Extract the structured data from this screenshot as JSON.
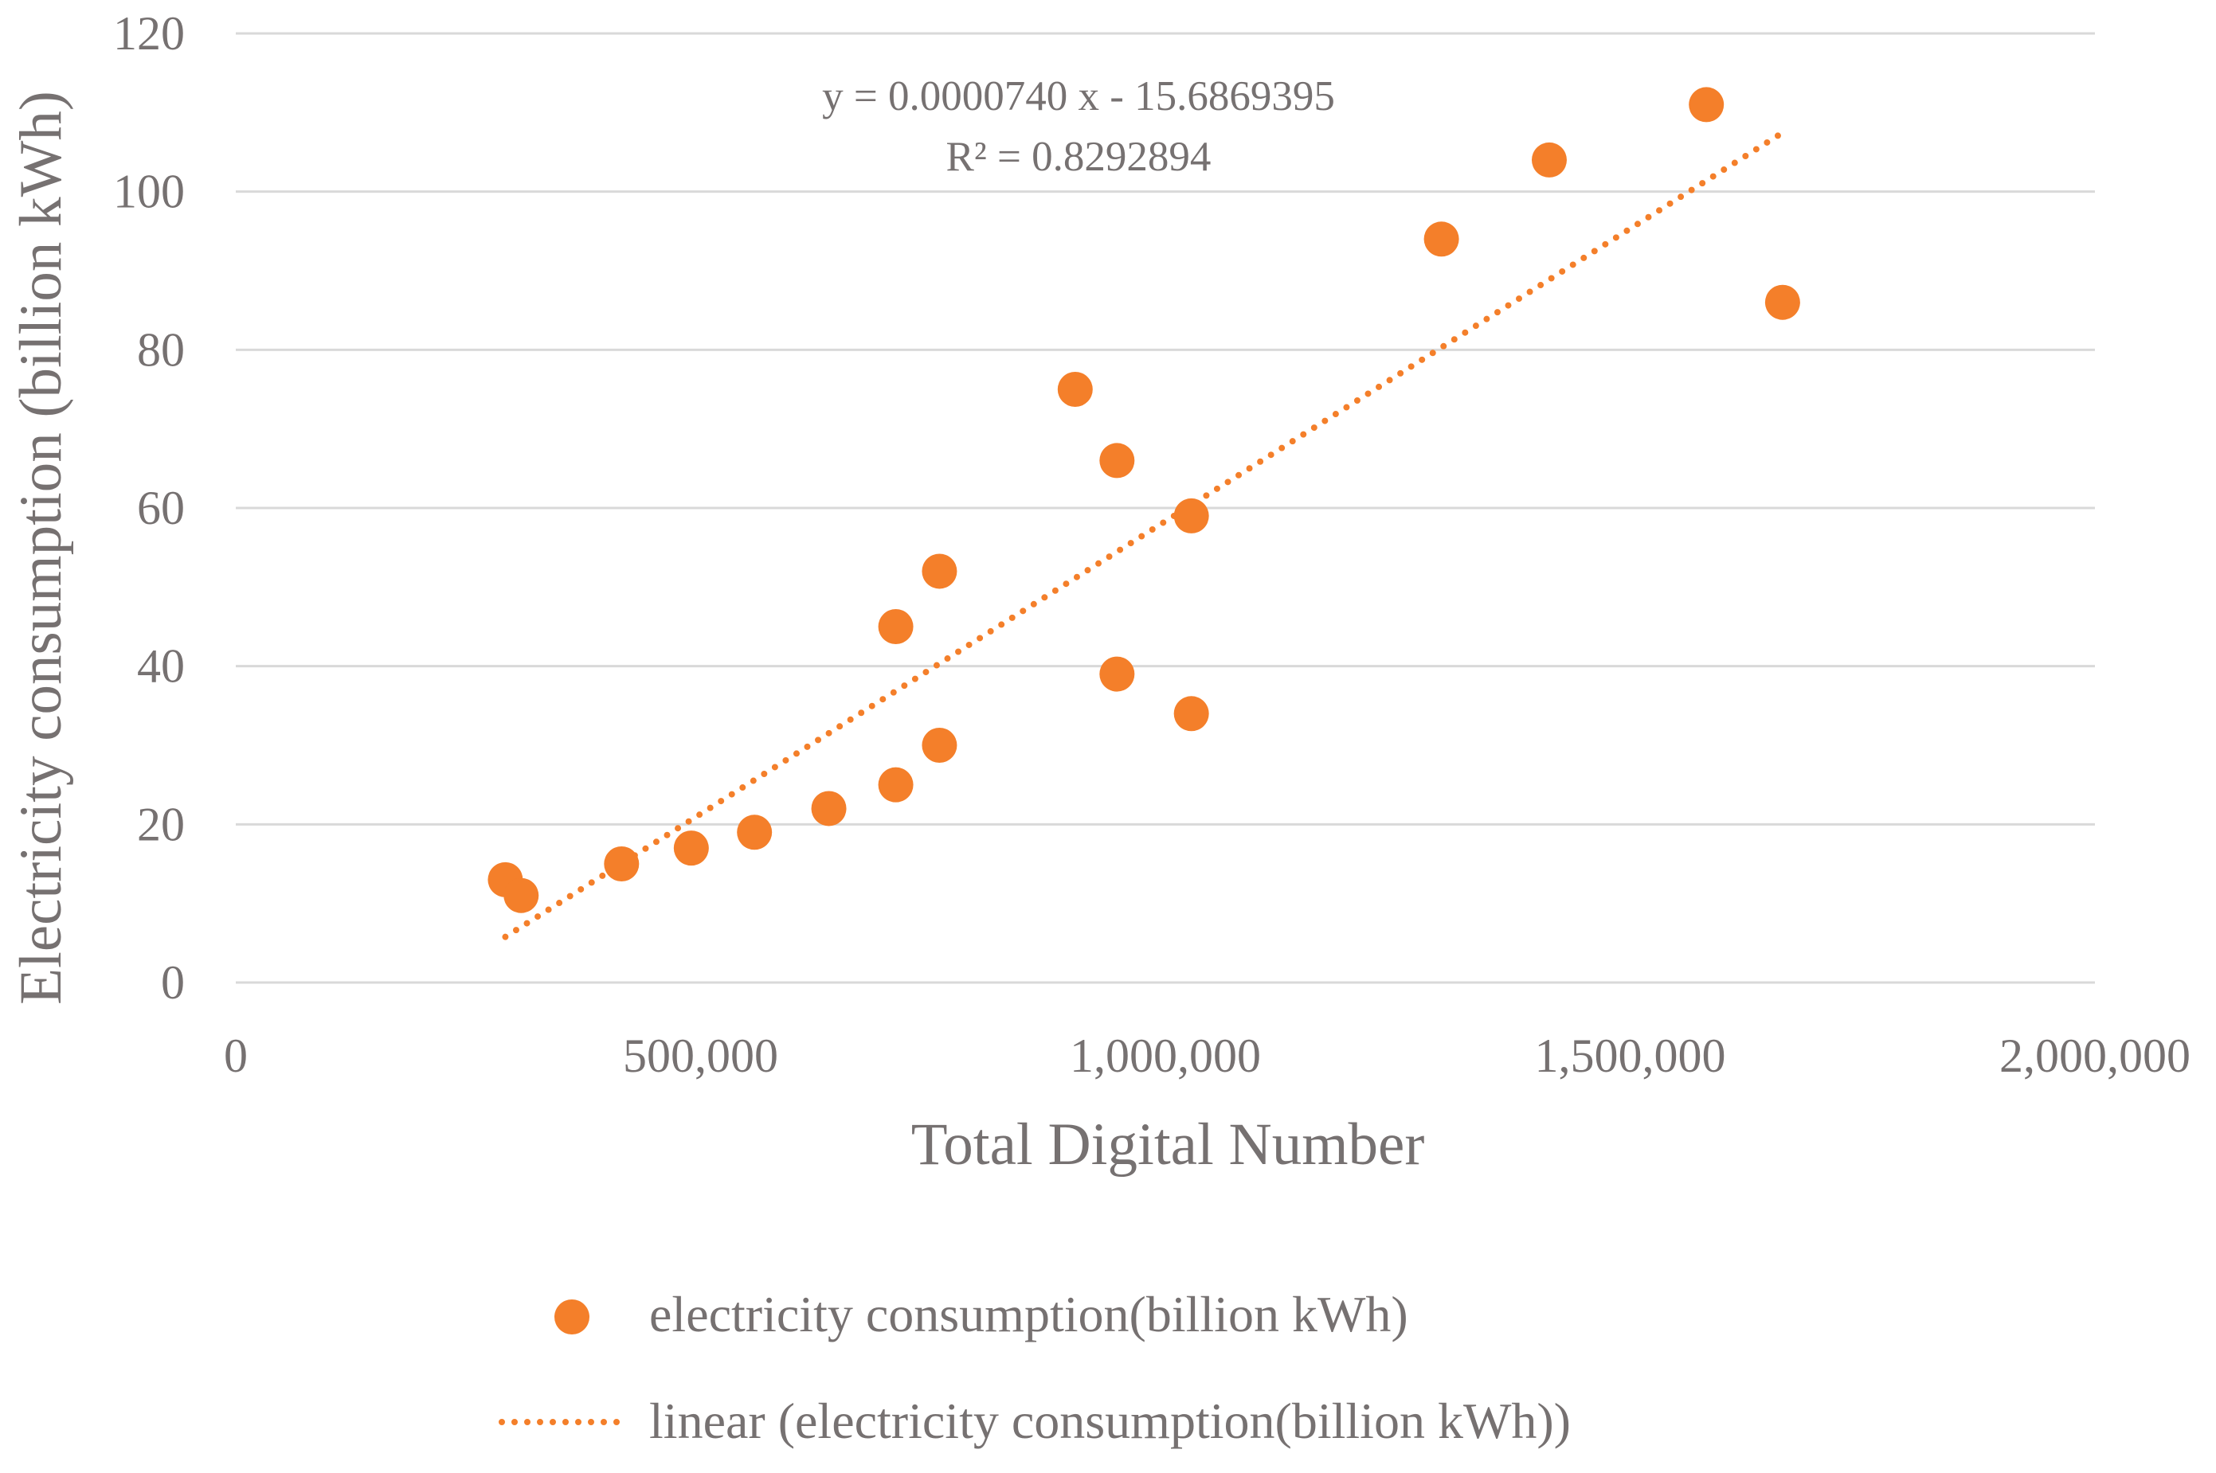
{
  "chart_data": {
    "type": "scatter",
    "title": "",
    "xlabel": "Total Digital Number",
    "ylabel": "Electricity consumption (billion kWh)",
    "xlim": [
      0,
      2000000
    ],
    "ylim": [
      0,
      120
    ],
    "x_ticks": [
      0,
      500000,
      1000000,
      1500000,
      2000000
    ],
    "x_tick_labels": [
      "0",
      "500,000",
      "1,000,000",
      "1,500,000",
      "2,000,000"
    ],
    "y_ticks": [
      0,
      20,
      40,
      60,
      80,
      100,
      120
    ],
    "y_tick_labels": [
      "0",
      "20",
      "40",
      "60",
      "80",
      "100",
      "120"
    ],
    "grid": true,
    "series": [
      {
        "name": "electricity consumption(billion kWh)",
        "color": "#F47F2A",
        "points": [
          {
            "x": 290000,
            "y": 13
          },
          {
            "x": 307000,
            "y": 11
          },
          {
            "x": 415000,
            "y": 15
          },
          {
            "x": 490000,
            "y": 17
          },
          {
            "x": 558000,
            "y": 19
          },
          {
            "x": 638000,
            "y": 22
          },
          {
            "x": 710000,
            "y": 25
          },
          {
            "x": 710000,
            "y": 45
          },
          {
            "x": 757000,
            "y": 30
          },
          {
            "x": 757000,
            "y": 52
          },
          {
            "x": 903000,
            "y": 75
          },
          {
            "x": 948000,
            "y": 66
          },
          {
            "x": 948000,
            "y": 39
          },
          {
            "x": 1028000,
            "y": 59
          },
          {
            "x": 1028000,
            "y": 34
          },
          {
            "x": 1297000,
            "y": 94
          },
          {
            "x": 1413000,
            "y": 104
          },
          {
            "x": 1582000,
            "y": 111
          },
          {
            "x": 1664000,
            "y": 86
          }
        ]
      }
    ],
    "trendline": {
      "name": "linear (electricity consumption(billion kWh))",
      "type": "linear",
      "slope": 7.4e-05,
      "intercept": -15.6869395,
      "x_range": [
        290000,
        1664000
      ],
      "color": "#F47F2A",
      "style": "dotted"
    },
    "annotations": {
      "equation": "y = 0.0000740 x - 15.6869395",
      "r_squared": "R² = 0.8292894"
    },
    "legend": {
      "placement": "bottom-center",
      "entries": [
        "electricity consumption(billion kWh)",
        "linear (electricity consumption(billion kWh))"
      ]
    }
  }
}
